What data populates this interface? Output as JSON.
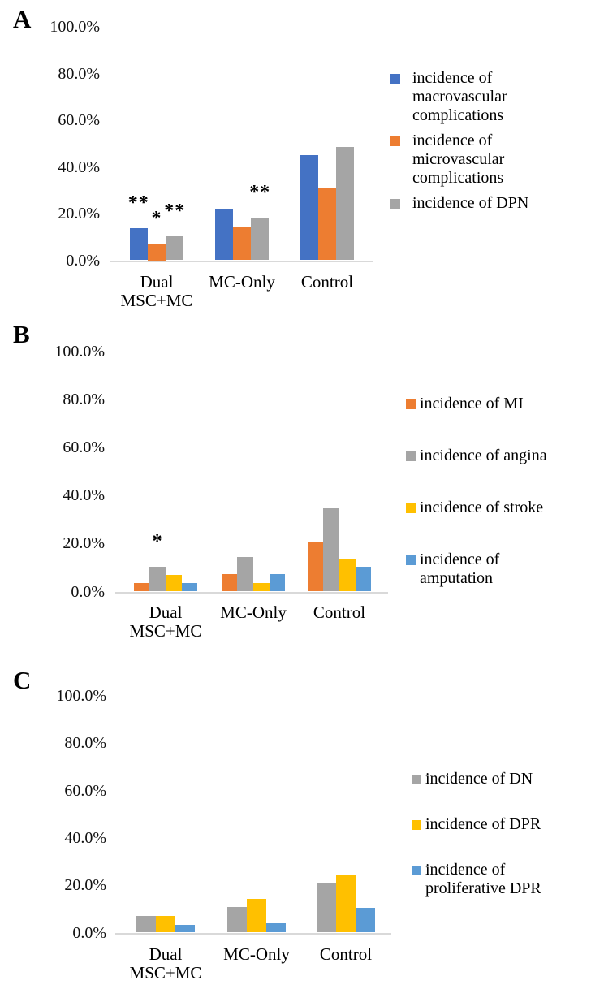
{
  "figure_title": "",
  "colors": {
    "blue": "#4472C4",
    "orange": "#ED7D31",
    "gray": "#A5A5A5",
    "yellow": "#FFC000",
    "light_blue": "#5B9BD5",
    "axis_line": "#D9D9D9",
    "text": "#000000"
  },
  "chart_data": [
    {
      "panel": "A",
      "type": "bar",
      "categories": [
        "Dual MSC+MC",
        "MC-Only",
        "Control"
      ],
      "y_ticks": [
        "100.0%",
        "80.0%",
        "60.0%",
        "40.0%",
        "20.0%",
        "0.0%"
      ],
      "ylim": [
        0,
        100
      ],
      "ylabel": "",
      "xlabel": "",
      "grid": "off",
      "legend_position": "right",
      "series": [
        {
          "name": "incidence of macrovascular complications",
          "color_key": "blue",
          "values": [
            13.9,
            21.8,
            44.9
          ],
          "annotations": [
            "**",
            "",
            ""
          ]
        },
        {
          "name": "incidence of microvascular complications",
          "color_key": "orange",
          "values": [
            7.0,
            14.6,
            31.3
          ],
          "annotations": [
            "*",
            "",
            ""
          ]
        },
        {
          "name": "incidence of DPN",
          "color_key": "gray",
          "values": [
            10.3,
            18.3,
            48.4
          ],
          "annotations": [
            "**",
            "**",
            ""
          ]
        }
      ]
    },
    {
      "panel": "B",
      "type": "bar",
      "categories": [
        "Dual MSC+MC",
        "MC-Only",
        "Control"
      ],
      "y_ticks": [
        "100.0%",
        "80.0%",
        "60.0%",
        "40.0%",
        "20.0%",
        "0.0%"
      ],
      "ylim": [
        0,
        100
      ],
      "ylabel": "",
      "xlabel": "",
      "grid": "off",
      "legend_position": "right",
      "series": [
        {
          "name": "incidence of MI",
          "color_key": "orange",
          "values": [
            3.5,
            7.2,
            20.9
          ],
          "annotations": [
            "",
            "",
            ""
          ]
        },
        {
          "name": "incidence of angina",
          "color_key": "gray",
          "values": [
            10.4,
            14.3,
            34.6
          ],
          "annotations": [
            "*",
            "",
            ""
          ]
        },
        {
          "name": "incidence of stroke",
          "color_key": "yellow",
          "values": [
            7.0,
            3.5,
            13.8
          ],
          "annotations": [
            "",
            "",
            ""
          ]
        },
        {
          "name": "incidence of amputation",
          "color_key": "light_blue",
          "values": [
            3.5,
            7.2,
            10.4
          ],
          "annotations": [
            "",
            "",
            ""
          ]
        }
      ]
    },
    {
      "panel": "C",
      "type": "bar",
      "categories": [
        "Dual MSC+MC",
        "MC-Only",
        "Control"
      ],
      "y_ticks": [
        "100.0%",
        "80.0%",
        "60.0%",
        "40.0%",
        "20.0%",
        "0.0%"
      ],
      "ylim": [
        0,
        100
      ],
      "ylabel": "",
      "xlabel": "",
      "grid": "off",
      "legend_position": "right",
      "series": [
        {
          "name": "incidence of DN",
          "color_key": "gray",
          "values": [
            6.9,
            10.9,
            20.7
          ],
          "annotations": [
            "",
            "",
            ""
          ]
        },
        {
          "name": "incidence of DPR",
          "color_key": "yellow",
          "values": [
            6.9,
            14.3,
            24.4
          ],
          "annotations": [
            "",
            "",
            ""
          ]
        },
        {
          "name": "incidence of proliferative DPR",
          "color_key": "light_blue",
          "values": [
            3.4,
            3.8,
            10.3
          ],
          "annotations": [
            "",
            "",
            ""
          ]
        }
      ]
    }
  ]
}
